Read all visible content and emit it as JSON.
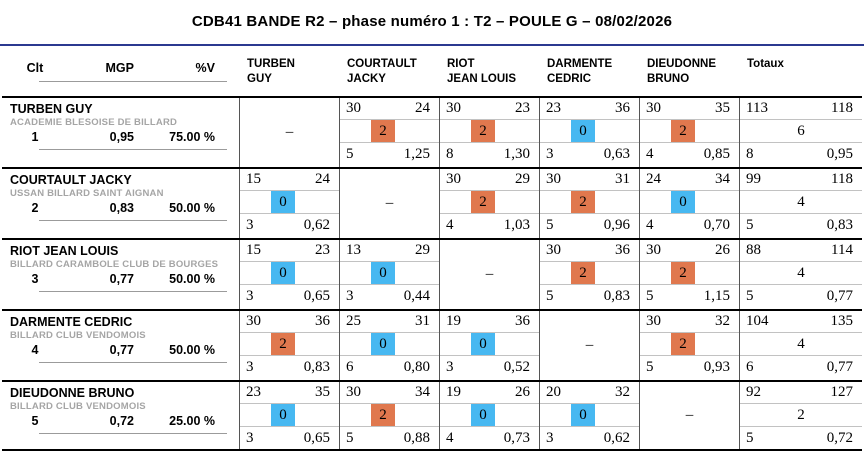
{
  "title": "CDB41 BANDE R2 – phase numéro 1 : T2 – POULE G – 08/02/2026",
  "colors": {
    "win_bg": "#E0784E",
    "loss_bg": "#47B8F1",
    "title_rule": "#2B3990"
  },
  "self_marker": "–",
  "header": {
    "clt": "Clt",
    "mgp": "MGP",
    "pv": "%V",
    "totaux": "Totaux",
    "opponents": [
      [
        "TURBEN",
        "GUY"
      ],
      [
        "COURTAULT",
        "JACKY"
      ],
      [
        "RIOT",
        "JEAN LOUIS"
      ],
      [
        "DARMENTE",
        "CEDRIC"
      ],
      [
        "DIEUDONNE",
        "BRUNO"
      ]
    ]
  },
  "players": [
    {
      "name": "TURBEN GUY",
      "club": "ACADEMIE BLESOISE DE BILLARD",
      "clt": "1",
      "mgp": "0,95",
      "pv": "75.00 %",
      "matches": [
        null,
        {
          "pf": "30",
          "pa": "24",
          "mp": "2",
          "inn": "5",
          "avg": "1,25"
        },
        {
          "pf": "30",
          "pa": "23",
          "mp": "2",
          "inn": "8",
          "avg": "1,30"
        },
        {
          "pf": "23",
          "pa": "36",
          "mp": "0",
          "inn": "3",
          "avg": "0,63"
        },
        {
          "pf": "30",
          "pa": "35",
          "mp": "2",
          "inn": "4",
          "avg": "0,85"
        }
      ],
      "totals": {
        "pf": "113",
        "pa": "118",
        "mp": "6",
        "inn": "8",
        "avg": "0,95"
      }
    },
    {
      "name": "COURTAULT JACKY",
      "club": "USSAN BILLARD SAINT AIGNAN",
      "clt": "2",
      "mgp": "0,83",
      "pv": "50.00 %",
      "matches": [
        {
          "pf": "15",
          "pa": "24",
          "mp": "0",
          "inn": "3",
          "avg": "0,62"
        },
        null,
        {
          "pf": "30",
          "pa": "29",
          "mp": "2",
          "inn": "4",
          "avg": "1,03"
        },
        {
          "pf": "30",
          "pa": "31",
          "mp": "2",
          "inn": "5",
          "avg": "0,96"
        },
        {
          "pf": "24",
          "pa": "34",
          "mp": "0",
          "inn": "4",
          "avg": "0,70"
        }
      ],
      "totals": {
        "pf": "99",
        "pa": "118",
        "mp": "4",
        "inn": "5",
        "avg": "0,83"
      }
    },
    {
      "name": "RIOT JEAN LOUIS",
      "club": "BILLARD CARAMBOLE CLUB DE BOURGES",
      "clt": "3",
      "mgp": "0,77",
      "pv": "50.00 %",
      "matches": [
        {
          "pf": "15",
          "pa": "23",
          "mp": "0",
          "inn": "3",
          "avg": "0,65"
        },
        {
          "pf": "13",
          "pa": "29",
          "mp": "0",
          "inn": "3",
          "avg": "0,44"
        },
        null,
        {
          "pf": "30",
          "pa": "36",
          "mp": "2",
          "inn": "5",
          "avg": "0,83"
        },
        {
          "pf": "30",
          "pa": "26",
          "mp": "2",
          "inn": "5",
          "avg": "1,15"
        }
      ],
      "totals": {
        "pf": "88",
        "pa": "114",
        "mp": "4",
        "inn": "5",
        "avg": "0,77"
      }
    },
    {
      "name": "DARMENTE CEDRIC",
      "club": "BILLARD CLUB VENDOMOIS",
      "clt": "4",
      "mgp": "0,77",
      "pv": "50.00 %",
      "matches": [
        {
          "pf": "30",
          "pa": "36",
          "mp": "2",
          "inn": "3",
          "avg": "0,83"
        },
        {
          "pf": "25",
          "pa": "31",
          "mp": "0",
          "inn": "6",
          "avg": "0,80"
        },
        {
          "pf": "19",
          "pa": "36",
          "mp": "0",
          "inn": "3",
          "avg": "0,52"
        },
        null,
        {
          "pf": "30",
          "pa": "32",
          "mp": "2",
          "inn": "5",
          "avg": "0,93"
        }
      ],
      "totals": {
        "pf": "104",
        "pa": "135",
        "mp": "4",
        "inn": "6",
        "avg": "0,77"
      }
    },
    {
      "name": "DIEUDONNE BRUNO",
      "club": "BILLARD CLUB VENDOMOIS",
      "clt": "5",
      "mgp": "0,72",
      "pv": "25.00 %",
      "matches": [
        {
          "pf": "23",
          "pa": "35",
          "mp": "0",
          "inn": "3",
          "avg": "0,65"
        },
        {
          "pf": "30",
          "pa": "34",
          "mp": "2",
          "inn": "5",
          "avg": "0,88"
        },
        {
          "pf": "19",
          "pa": "26",
          "mp": "0",
          "inn": "4",
          "avg": "0,73"
        },
        {
          "pf": "20",
          "pa": "32",
          "mp": "0",
          "inn": "3",
          "avg": "0,62"
        },
        null
      ],
      "totals": {
        "pf": "92",
        "pa": "127",
        "mp": "2",
        "inn": "5",
        "avg": "0,72"
      }
    }
  ]
}
